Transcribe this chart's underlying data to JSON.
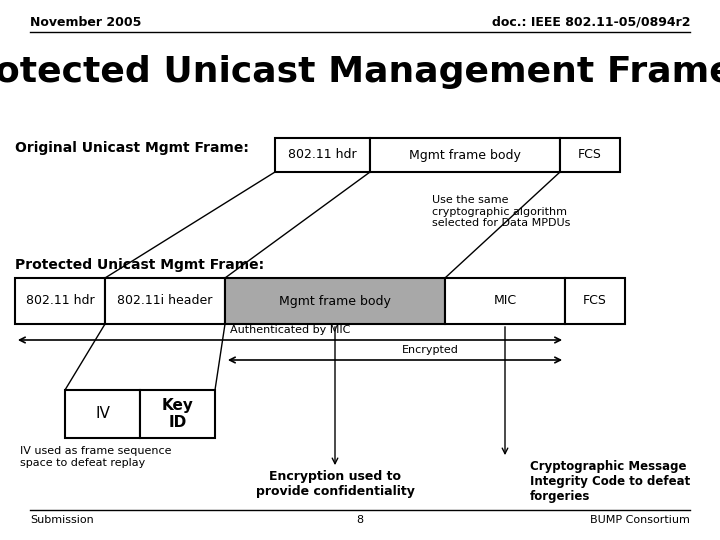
{
  "header_left": "November 2005",
  "header_right": "doc.: IEEE 802.11-05/0894r2",
  "title": "otected Unicast Management Frame Format using CC",
  "original_label": "Original Unicast Mgmt Frame:",
  "protected_label": "Protected Unicast Mgmt Frame:",
  "orig_boxes": [
    "802.11 hdr",
    "Mgmt frame body",
    "FCS"
  ],
  "prot_boxes": [
    "802.11 hdr",
    "802.11i header",
    "Mgmt frame body",
    "MIC",
    "FCS"
  ],
  "prot_box_gray": [
    false,
    false,
    true,
    false,
    false
  ],
  "gray_color": "#a8a8a8",
  "bg_color": "#ffffff",
  "anno_crypto": "Use the same\ncryptographic algorithm\nselected for Data MPDUs",
  "auth_label": "Authenticated by MIC",
  "enc_label": "Encrypted",
  "iv_label": "IV",
  "keyid_label": "Key\nID",
  "iv_note": "IV used as frame sequence\nspace to defeat replay",
  "enc_note": "Encryption used to\nprovide confidentiality",
  "mic_note": "Cryptographic Message\nIntegrity Code to defeat\nforgeries",
  "footer_left": "Submission",
  "footer_center": "8",
  "footer_right": "BUMP Consortium"
}
